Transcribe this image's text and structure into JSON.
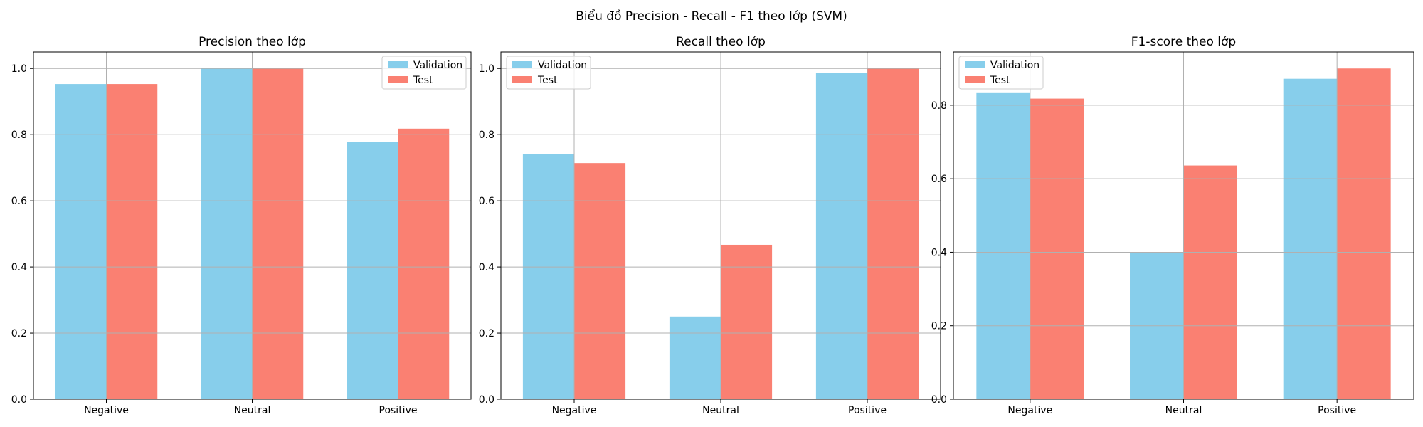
{
  "figure": {
    "title": "Biểu đồ Precision - Recall - F1 theo lớp (SVM)"
  },
  "colors": {
    "validation": "#87CEEB",
    "test": "#FA8072"
  },
  "chart_data": [
    {
      "type": "bar",
      "title": "Precision theo lớp",
      "categories": [
        "Negative",
        "Neutral",
        "Positive"
      ],
      "series": [
        {
          "name": "Validation",
          "values": [
            0.953,
            1.0,
            0.778
          ]
        },
        {
          "name": "Test",
          "values": [
            0.953,
            1.0,
            0.818
          ]
        }
      ],
      "ylim": [
        0,
        1.05
      ],
      "yticks": [
        "0.0",
        "0.2",
        "0.4",
        "0.6",
        "0.8",
        "1.0"
      ],
      "grid": true,
      "legend": "upper right"
    },
    {
      "type": "bar",
      "title": "Recall theo lớp",
      "categories": [
        "Negative",
        "Neutral",
        "Positive"
      ],
      "series": [
        {
          "name": "Validation",
          "values": [
            0.741,
            0.25,
            0.986
          ]
        },
        {
          "name": "Test",
          "values": [
            0.714,
            0.467,
            1.0
          ]
        }
      ],
      "ylim": [
        0,
        1.05
      ],
      "yticks": [
        "0.0",
        "0.2",
        "0.4",
        "0.6",
        "0.8",
        "1.0"
      ],
      "grid": true,
      "legend": "upper left"
    },
    {
      "type": "bar",
      "title": "F1-score theo lớp",
      "categories": [
        "Negative",
        "Neutral",
        "Positive"
      ],
      "series": [
        {
          "name": "Validation",
          "values": [
            0.835,
            0.4,
            0.872
          ]
        },
        {
          "name": "Test",
          "values": [
            0.818,
            0.636,
            0.9
          ]
        }
      ],
      "ylim": [
        0,
        0.945
      ],
      "yticks": [
        "0.0",
        "0.2",
        "0.4",
        "0.6",
        "0.8"
      ],
      "grid": true,
      "legend": "upper left"
    }
  ]
}
